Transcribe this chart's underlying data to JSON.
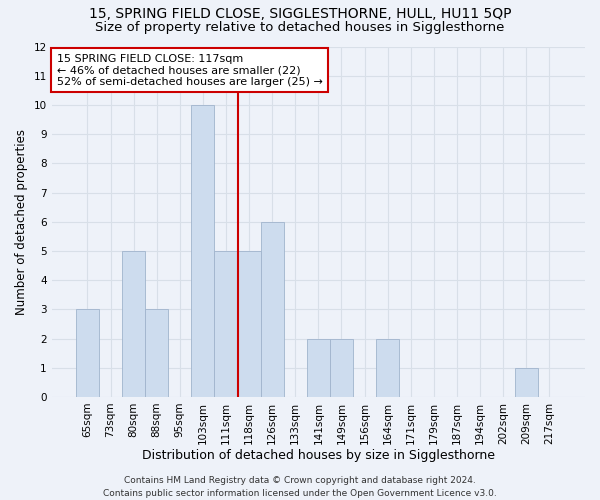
{
  "title": "15, SPRING FIELD CLOSE, SIGGLESTHORNE, HULL, HU11 5QP",
  "subtitle": "Size of property relative to detached houses in Sigglesthorne",
  "xlabel": "Distribution of detached houses by size in Sigglesthorne",
  "ylabel": "Number of detached properties",
  "bar_labels": [
    "65sqm",
    "73sqm",
    "80sqm",
    "88sqm",
    "95sqm",
    "103sqm",
    "111sqm",
    "118sqm",
    "126sqm",
    "133sqm",
    "141sqm",
    "149sqm",
    "156sqm",
    "164sqm",
    "171sqm",
    "179sqm",
    "187sqm",
    "194sqm",
    "202sqm",
    "209sqm",
    "217sqm"
  ],
  "bar_values": [
    3,
    0,
    5,
    3,
    0,
    10,
    5,
    5,
    6,
    0,
    2,
    2,
    0,
    2,
    0,
    0,
    0,
    0,
    0,
    1,
    0
  ],
  "bar_color": "#cddcee",
  "bar_edge_color": "#a0b4cc",
  "vline_bin_index": 7,
  "annotation_text": "15 SPRING FIELD CLOSE: 117sqm\n← 46% of detached houses are smaller (22)\n52% of semi-detached houses are larger (25) →",
  "annotation_box_color": "white",
  "annotation_box_edge_color": "#cc0000",
  "vline_color": "#cc0000",
  "ylim": [
    0,
    12
  ],
  "yticks": [
    0,
    1,
    2,
    3,
    4,
    5,
    6,
    7,
    8,
    9,
    10,
    11,
    12
  ],
  "footer": "Contains HM Land Registry data © Crown copyright and database right 2024.\nContains public sector information licensed under the Open Government Licence v3.0.",
  "bg_color": "#eef2f9",
  "grid_color": "#d8dfe8",
  "title_fontsize": 10,
  "subtitle_fontsize": 9.5,
  "xlabel_fontsize": 9,
  "ylabel_fontsize": 8.5,
  "tick_fontsize": 7.5,
  "footer_fontsize": 6.5,
  "annotation_fontsize": 8
}
